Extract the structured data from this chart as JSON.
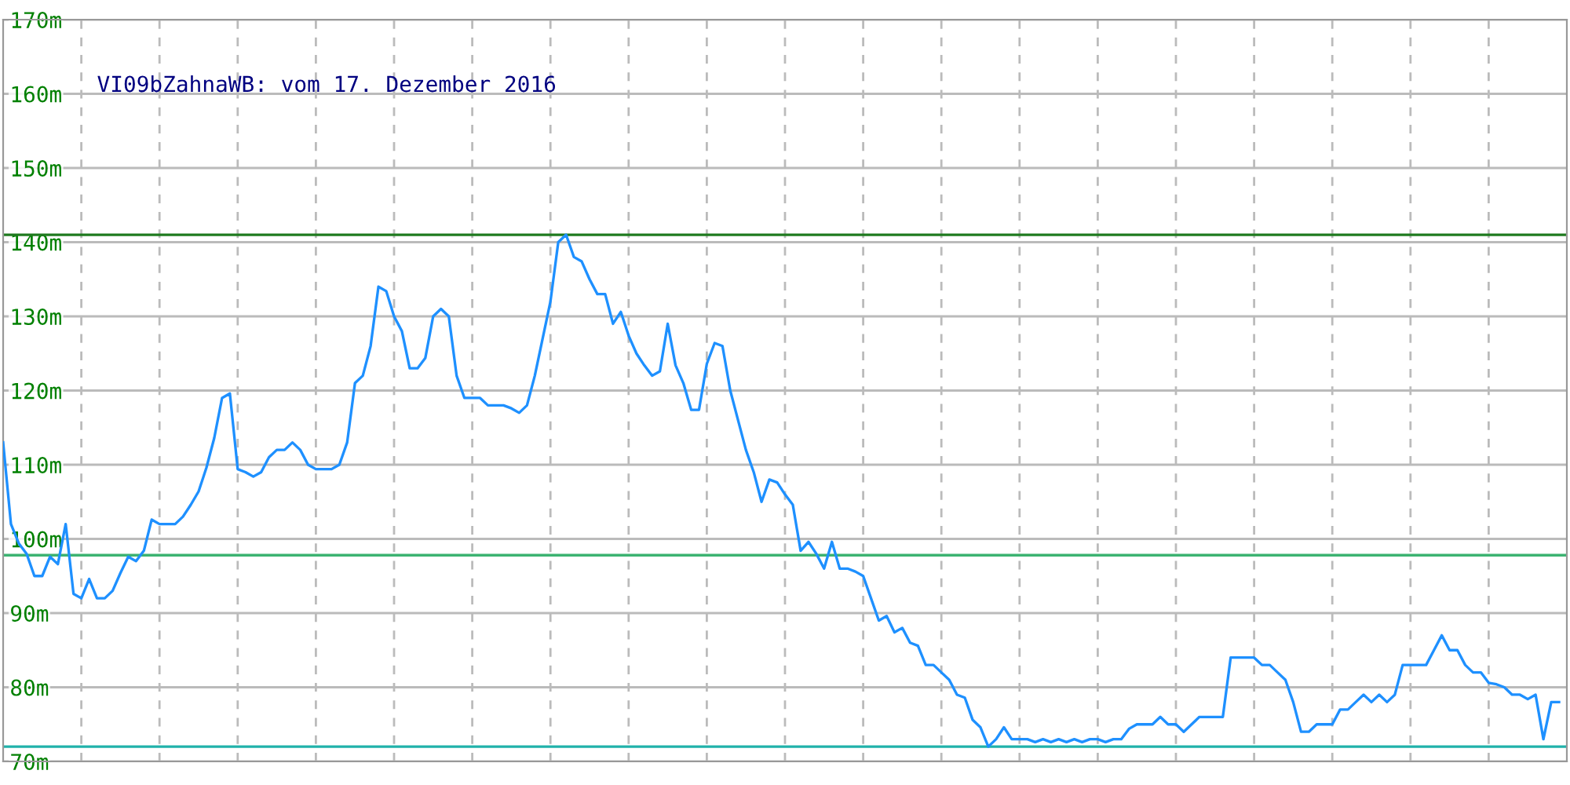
{
  "chart_data": {
    "type": "line",
    "title": "VI09bZahnaWB: vom 17. Dezember 2016",
    "categories": [
      null,
      null,
      null,
      null,
      null,
      null,
      null,
      null,
      null,
      null,
      null,
      null,
      null,
      null,
      null,
      null,
      null,
      null,
      null,
      null,
      null,
      null,
      null,
      null,
      null,
      null,
      null,
      null,
      null,
      null,
      null,
      null,
      null,
      null,
      null,
      null,
      null,
      null,
      null,
      null,
      null,
      null,
      null,
      null,
      null,
      null,
      null,
      null,
      null,
      null,
      null,
      null,
      null,
      null,
      null,
      null,
      null,
      null,
      null,
      null,
      null,
      null,
      null,
      null,
      null,
      null,
      null,
      null,
      null,
      null,
      null,
      null,
      null,
      null,
      null,
      null,
      null,
      null,
      null,
      null,
      null,
      null,
      null,
      null,
      null,
      null,
      null,
      null,
      null,
      null,
      null,
      null,
      null,
      null,
      null,
      null,
      null,
      null,
      null,
      null,
      null,
      null,
      null,
      null,
      null,
      null,
      null,
      null,
      null,
      null,
      null,
      null,
      null,
      null,
      null,
      null,
      null,
      null,
      null,
      null,
      null,
      null,
      null,
      null,
      null,
      null,
      null,
      null,
      null,
      null,
      null,
      null,
      null,
      null,
      null,
      null,
      null,
      null,
      null,
      null,
      null,
      null,
      null,
      null,
      null,
      null,
      null,
      null,
      null,
      null,
      null,
      null,
      null,
      null,
      null,
      null,
      null,
      null,
      null,
      null,
      null,
      null,
      null,
      null,
      null,
      null,
      null,
      null,
      null,
      null,
      null,
      null,
      null,
      null,
      null,
      null,
      null,
      null,
      null,
      null,
      null,
      null,
      null,
      null,
      null,
      null,
      null,
      null,
      null,
      null,
      null,
      null,
      null,
      null,
      null,
      null,
      null,
      null,
      null,
      null
    ],
    "series": [
      {
        "color": "#1e90ff",
        "values": [
          113,
          102,
          99.4,
          98,
          95,
          95,
          97.6,
          96.6,
          102,
          92.6,
          92,
          94.6,
          92,
          92,
          93,
          95.4,
          97.6,
          97,
          98.4,
          102.6,
          102,
          102,
          102,
          103,
          104.6,
          106.4,
          109.6,
          113.6,
          119,
          119.6,
          109.4,
          109,
          108.4,
          109,
          111,
          112,
          112,
          113,
          112,
          110,
          109.4,
          109.4,
          109.4,
          110,
          113,
          121,
          122,
          126,
          134,
          133.4,
          130,
          128,
          123,
          123,
          124.4,
          130,
          131,
          130,
          122,
          119,
          119,
          119,
          118,
          118,
          118,
          117.6,
          117,
          118,
          122,
          127,
          132,
          140,
          141,
          138,
          137.4,
          135,
          133,
          133,
          129,
          130.6,
          127.4,
          125,
          123.4,
          122,
          122.6,
          129,
          123.4,
          121,
          117.4,
          117.4,
          123.6,
          126.4,
          126,
          120,
          116,
          112,
          109,
          105,
          108,
          107.6,
          106,
          104.6,
          98.4,
          99.6,
          98,
          96,
          99.6,
          96,
          96,
          95.6,
          95,
          92,
          89,
          89.6,
          87.4,
          88,
          86,
          85.6,
          83,
          83,
          82,
          81,
          79,
          78.6,
          75.6,
          74.6,
          72,
          73,
          74.6,
          73,
          73,
          73,
          72.6,
          73,
          72.6,
          73,
          72.6,
          73,
          72.6,
          73,
          73,
          72.6,
          73,
          73,
          74.4,
          75,
          75,
          75,
          76,
          75,
          75,
          74,
          75,
          76,
          76,
          76,
          76,
          84,
          84,
          84,
          84,
          83,
          83,
          82,
          81,
          78,
          74,
          74,
          75,
          75,
          75,
          77,
          77,
          78,
          79,
          78,
          79,
          78,
          79,
          83,
          83,
          83,
          83,
          85,
          87,
          85,
          85,
          83,
          82,
          82,
          80.6,
          80.4,
          80,
          79,
          79,
          78.4,
          79,
          73,
          78,
          78
        ]
      }
    ],
    "ylim": [
      70,
      170
    ],
    "yticks": [
      {
        "value": 70,
        "label": "70m"
      },
      {
        "value": 80,
        "label": "80m"
      },
      {
        "value": 90,
        "label": "90m"
      },
      {
        "value": 100,
        "label": "100m"
      },
      {
        "value": 110,
        "label": "110m"
      },
      {
        "value": 120,
        "label": "120m"
      },
      {
        "value": 130,
        "label": "130m"
      },
      {
        "value": 140,
        "label": "140m"
      },
      {
        "value": 150,
        "label": "150m"
      },
      {
        "value": 160,
        "label": "160m"
      },
      {
        "value": 170,
        "label": "170m"
      }
    ],
    "ref_lines": [
      {
        "axis": "y",
        "value": 141,
        "color": "#1f7a1f"
      },
      {
        "axis": "y",
        "value": 97.8,
        "color": "#3cb371"
      },
      {
        "axis": "y",
        "value": 72,
        "color": "#20b2aa"
      }
    ],
    "grid": true,
    "legend": false,
    "marker": "none",
    "line_style": "solid"
  }
}
